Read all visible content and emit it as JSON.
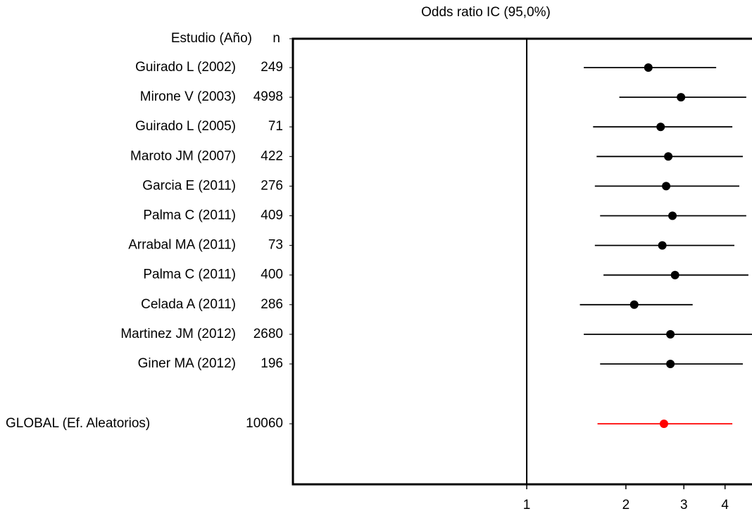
{
  "chart_data": {
    "type": "forest",
    "title": "Odds ratio IC  (95,0%)",
    "study_header": "Estudio  (Año)",
    "n_header": "n",
    "categories": [
      "Guirado L (2002)",
      "Mirone V (2003)",
      "Guirado L (2005)",
      "Maroto JM (2007)",
      "Garcia E (2011)",
      "Palma C (2011)",
      "Arrabal MA (2011)",
      "Palma C (2011)",
      "Celada A (2011)",
      "Martinez JM (2012)",
      "Giner MA (2012)"
    ],
    "n": [
      249,
      4998,
      71,
      422,
      276,
      409,
      73,
      400,
      286,
      2680,
      196
    ],
    "values": [
      2.34,
      2.94,
      2.55,
      2.69,
      2.65,
      2.77,
      2.58,
      2.82,
      2.12,
      2.73,
      2.73
    ],
    "lower": [
      1.49,
      1.91,
      1.59,
      1.63,
      1.61,
      1.67,
      1.61,
      1.71,
      1.45,
      1.49,
      1.67
    ],
    "upper": [
      3.76,
      4.64,
      4.21,
      4.53,
      4.42,
      4.64,
      4.27,
      4.71,
      3.19,
      5.0,
      4.53
    ],
    "color": "#000000",
    "summary": {
      "name": "GLOBAL (Ef. Aleatorios)",
      "n": 10060,
      "value": 2.61,
      "lower": 1.64,
      "upper": 4.21,
      "color": "#ff0000"
    },
    "xlim": [
      0.195,
      4.83
    ],
    "xticks": [
      1,
      2,
      3,
      4
    ],
    "log_x": true,
    "reference": 1
  }
}
